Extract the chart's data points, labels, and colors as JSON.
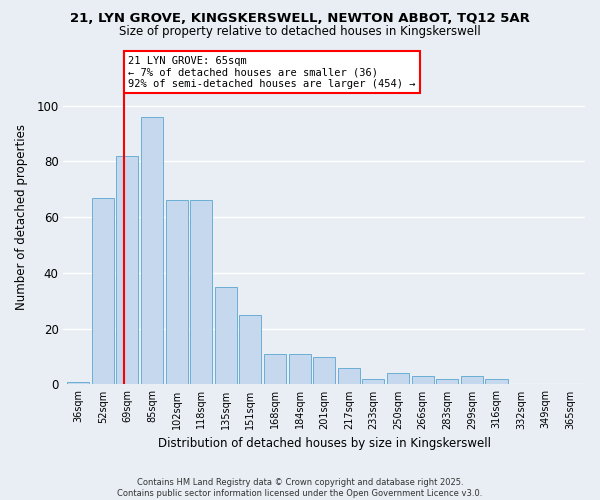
{
  "title1": "21, LYN GROVE, KINGSKERSWELL, NEWTON ABBOT, TQ12 5AR",
  "title2": "Size of property relative to detached houses in Kingskerswell",
  "xlabel": "Distribution of detached houses by size in Kingskerswell",
  "ylabel": "Number of detached properties",
  "categories": [
    "36sqm",
    "52sqm",
    "69sqm",
    "85sqm",
    "102sqm",
    "118sqm",
    "135sqm",
    "151sqm",
    "168sqm",
    "184sqm",
    "201sqm",
    "217sqm",
    "233sqm",
    "250sqm",
    "266sqm",
    "283sqm",
    "299sqm",
    "316sqm",
    "332sqm",
    "349sqm",
    "365sqm"
  ],
  "values": [
    1,
    67,
    82,
    96,
    66,
    66,
    35,
    25,
    11,
    11,
    10,
    6,
    2,
    4,
    3,
    2,
    3,
    2,
    0,
    0,
    0
  ],
  "bar_color": "#c5d8ed",
  "bar_edge_color": "#6baed6",
  "annotation_title": "21 LYN GROVE: 65sqm",
  "annotation_line1": "← 7% of detached houses are smaller (36)",
  "annotation_line2": "92% of semi-detached houses are larger (454) →",
  "annotation_box_color": "white",
  "annotation_box_edge": "red",
  "background_color": "#e8eef4",
  "grid_color": "white",
  "footer": "Contains HM Land Registry data © Crown copyright and database right 2025.\nContains public sector information licensed under the Open Government Licence v3.0.",
  "ylim": [
    0,
    120
  ],
  "yticks": [
    0,
    20,
    40,
    60,
    80,
    100
  ],
  "red_line_bar_idx": 1.88
}
